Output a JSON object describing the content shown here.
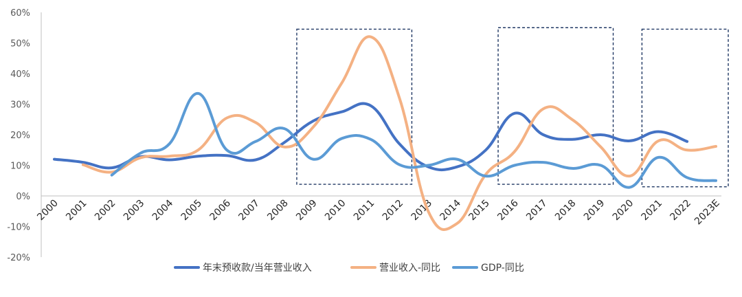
{
  "chart_data": {
    "type": "line",
    "title": "",
    "xlabel": "",
    "ylabel": "",
    "ylim": [
      -20,
      60
    ],
    "yticks": [
      -20,
      -10,
      0,
      10,
      20,
      30,
      40,
      50,
      60
    ],
    "y_tick_labels": [
      "-20%",
      "-10%",
      "0%",
      "10%",
      "20%",
      "30%",
      "40%",
      "50%",
      "60%"
    ],
    "categories": [
      "2000",
      "2001",
      "2002",
      "2003",
      "2004",
      "2005",
      "2006",
      "2007",
      "2008",
      "2009",
      "2010",
      "2011",
      "2012",
      "2013",
      "2014",
      "2015",
      "2016",
      "2017",
      "2018",
      "2019",
      "2020",
      "2021",
      "2022",
      "2023E"
    ],
    "grid": false,
    "legend_position": "bottom",
    "series": [
      {
        "name": "年末预收款/当年营业收入",
        "color": "#4472C4",
        "values": [
          12,
          11,
          9.2,
          12.8,
          11.8,
          13,
          13.2,
          11.8,
          17.5,
          24.5,
          27.5,
          29.5,
          17,
          9.5,
          9.5,
          15,
          27,
          20,
          18.5,
          20,
          18,
          21,
          17.8,
          null
        ]
      },
      {
        "name": "营业收入-同比",
        "color": "#F4B183",
        "values": [
          null,
          10.2,
          7.8,
          12.5,
          13,
          15,
          25.5,
          24,
          16,
          22.5,
          37,
          52,
          32,
          -5,
          -9,
          7,
          14.5,
          28.5,
          25,
          16,
          6.5,
          18,
          15,
          16.2
        ]
      },
      {
        "name": "GDP-同比",
        "color": "#5B9BD5",
        "values": [
          null,
          null,
          6.8,
          14,
          17,
          33.5,
          15,
          17.8,
          22,
          12,
          18.8,
          18.5,
          10.2,
          10,
          12,
          6.5,
          10,
          11,
          9,
          10,
          2.8,
          12.6,
          6,
          5
        ]
      }
    ],
    "annotations": [
      {
        "type": "dashed-box",
        "x_start": "2008",
        "x_end": "2012",
        "y_start": 3.8,
        "y_end": 54.5
      },
      {
        "type": "dashed-box",
        "x_start": "2015",
        "x_end": "2019",
        "y_start": 3.8,
        "y_end": 55
      },
      {
        "type": "dashed-box",
        "x_start": "2020",
        "x_end": "2023E",
        "y_start": 3.0,
        "y_end": 54.5
      }
    ],
    "annotation_color": "#203864"
  }
}
